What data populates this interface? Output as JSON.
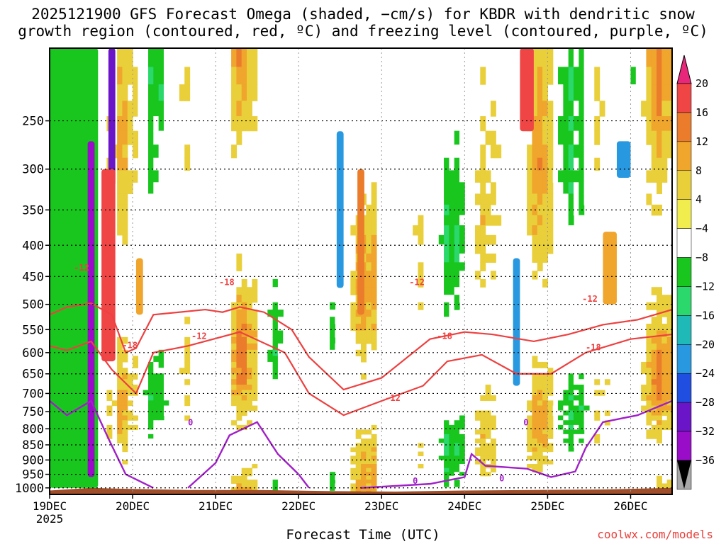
{
  "header": {
    "title_line1": "2025121900 GFS Forecast Omega (shaded, −cm/s) for KBDR with dendritic snow",
    "title_line2": "growth region (contoured, red, ºC) and freezing level (contoured, purple, ºC)"
  },
  "footer": {
    "credit": "coolwx.com/models"
  },
  "chart_data": {
    "type": "heatmap",
    "title": "2025121900 GFS Forecast Omega (shaded, −cm/s) for KBDR with dendritic snow growth region (contoured, red, ºC) and freezing level (contoured, purple, ºC)",
    "xlabel": "Forecast Time (UTC)",
    "ylabel": "",
    "x_range_hours": [
      0,
      180
    ],
    "x_ticks": [
      {
        "hour": 0,
        "label": "19DEC",
        "sublabel": "2025"
      },
      {
        "hour": 24,
        "label": "20DEC"
      },
      {
        "hour": 48,
        "label": "21DEC"
      },
      {
        "hour": 72,
        "label": "22DEC"
      },
      {
        "hour": 96,
        "label": "23DEC"
      },
      {
        "hour": 120,
        "label": "24DEC"
      },
      {
        "hour": 144,
        "label": "25DEC"
      },
      {
        "hour": 168,
        "label": "26DEC"
      }
    ],
    "y_range_hpa": [
      1025,
      190
    ],
    "y_ticks": [
      "250",
      "300",
      "350",
      "400",
      "450",
      "500",
      "550",
      "600",
      "650",
      "700",
      "750",
      "800",
      "850",
      "900",
      "950",
      "1000"
    ],
    "colorbar": {
      "labels": [
        "20",
        "16",
        "12",
        "8",
        "4",
        "−4",
        "−8",
        "−12",
        "−16",
        "−20",
        "−24",
        "−28",
        "−32",
        "−36"
      ],
      "colors": [
        "#ff2a5f",
        "#f04545",
        "#ea7c2c",
        "#f0a52c",
        "#e9cf3a",
        "#f2ed4e",
        "#ffffff",
        "#18c61e",
        "#2ad86b",
        "#1fb9b7",
        "#2898e0",
        "#1f4ee0",
        "#6b15c8",
        "#9a0dc8",
        "#a8a8a8"
      ],
      "top_arrow_color": "#e8277b",
      "bottom_arrow_color": "#000000"
    },
    "omega_features": [
      {
        "hour_start": 0,
        "hour_end": 14,
        "p_top": 190,
        "p_bottom": 1000,
        "value": -8
      },
      {
        "hour_start": 11,
        "hour_end": 13,
        "p_top": 270,
        "p_bottom": 960,
        "value": -32
      },
      {
        "hour_start": 17,
        "hour_end": 19,
        "p_top": 190,
        "p_bottom": 320,
        "value": -28
      },
      {
        "hour_start": 15,
        "hour_end": 19,
        "p_top": 300,
        "p_bottom": 620,
        "value": 18
      },
      {
        "hour_start": 25,
        "hour_end": 27,
        "p_top": 420,
        "p_bottom": 520,
        "value": 10
      },
      {
        "hour_start": 83,
        "hour_end": 85,
        "p_top": 260,
        "p_bottom": 470,
        "value": -22
      },
      {
        "hour_start": 89,
        "hour_end": 91,
        "p_top": 300,
        "p_bottom": 520,
        "value": 14
      },
      {
        "hour_start": 134,
        "hour_end": 136,
        "p_top": 420,
        "p_bottom": 680,
        "value": -22
      },
      {
        "hour_start": 136,
        "hour_end": 140,
        "p_top": 190,
        "p_bottom": 260,
        "value": 18
      },
      {
        "hour_start": 164,
        "hour_end": 168,
        "p_top": 270,
        "p_bottom": 310,
        "value": -20
      },
      {
        "hour_start": 160,
        "hour_end": 164,
        "p_top": 380,
        "p_bottom": 500,
        "value": 12
      }
    ],
    "dendritic_contours": [
      {
        "label": "-12",
        "name": "upper",
        "points": [
          [
            0,
            520
          ],
          [
            5,
            505
          ],
          [
            12,
            498
          ],
          [
            18,
            520
          ],
          [
            22,
            600
          ],
          [
            25,
            590
          ],
          [
            30,
            520
          ],
          [
            45,
            510
          ],
          [
            50,
            515
          ],
          [
            55,
            505
          ],
          [
            62,
            515
          ],
          [
            70,
            550
          ],
          [
            75,
            610
          ],
          [
            85,
            690
          ],
          [
            96,
            660
          ],
          [
            110,
            570
          ],
          [
            120,
            555
          ],
          [
            128,
            560
          ],
          [
            140,
            575
          ],
          [
            150,
            560
          ],
          [
            160,
            540
          ],
          [
            170,
            530
          ],
          [
            180,
            510
          ]
        ]
      },
      {
        "label": "-12",
        "name": "lower",
        "points": [
          [
            0,
            585
          ],
          [
            5,
            595
          ],
          [
            12,
            575
          ],
          [
            18,
            640
          ],
          [
            25,
            700
          ],
          [
            30,
            600
          ],
          [
            40,
            585
          ],
          [
            55,
            555
          ],
          [
            68,
            600
          ],
          [
            75,
            700
          ],
          [
            85,
            760
          ],
          [
            96,
            720
          ],
          [
            108,
            680
          ],
          [
            115,
            620
          ],
          [
            125,
            605
          ],
          [
            135,
            650
          ],
          [
            145,
            650
          ],
          [
            155,
            600
          ],
          [
            168,
            570
          ],
          [
            180,
            560
          ]
        ]
      }
    ],
    "dendritic_labels": [
      "-12",
      "-18",
      "-12",
      "-18",
      "-12",
      "-18",
      "-12",
      "-18",
      "-12"
    ],
    "freezing_contours": [
      {
        "label": "0",
        "points": [
          [
            0,
            720
          ],
          [
            5,
            760
          ],
          [
            12,
            720
          ],
          [
            17,
            830
          ],
          [
            22,
            950
          ],
          [
            30,
            1000
          ]
        ]
      },
      {
        "label": "0",
        "points": [
          [
            40,
            1000
          ],
          [
            48,
            910
          ],
          [
            52,
            820
          ],
          [
            60,
            780
          ],
          [
            66,
            880
          ],
          [
            72,
            950
          ],
          [
            75,
            1000
          ]
        ]
      },
      {
        "label": "0",
        "points": [
          [
            90,
            1000
          ],
          [
            110,
            985
          ],
          [
            120,
            960
          ],
          [
            122,
            880
          ],
          [
            126,
            920
          ],
          [
            138,
            930
          ],
          [
            145,
            960
          ],
          [
            152,
            940
          ],
          [
            155,
            860
          ],
          [
            160,
            780
          ],
          [
            170,
            760
          ],
          [
            180,
            720
          ]
        ]
      }
    ],
    "freezing_labels": [
      "0",
      "0",
      "0",
      "0"
    ]
  }
}
